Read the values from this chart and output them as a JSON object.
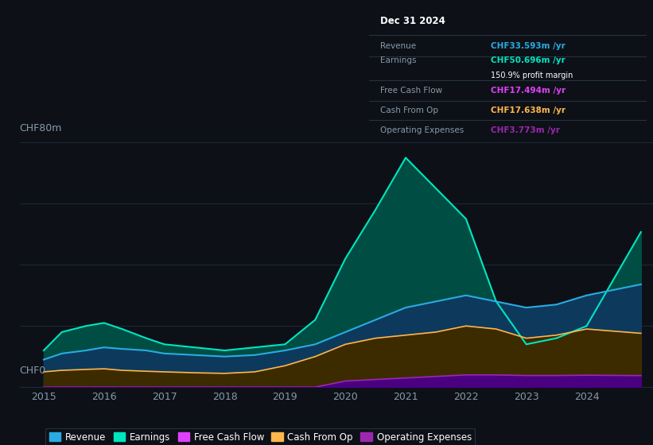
{
  "background_color": "#0d1117",
  "chart_bg": "#0d1117",
  "grid_color": "#1e2a38",
  "text_color": "#8899aa",
  "ylabel_text": "CHF80m",
  "ylabel0_text": "CHF0",
  "years": [
    2015,
    2015.3,
    2015.7,
    2016,
    2016.3,
    2016.7,
    2017,
    2017.5,
    2018,
    2018.5,
    2019,
    2019.5,
    2020,
    2020.5,
    2021,
    2021.5,
    2022,
    2022.5,
    2023,
    2023.5,
    2024,
    2024.9
  ],
  "revenue": [
    9,
    11,
    12,
    13,
    12.5,
    12,
    11,
    10.5,
    10,
    10.5,
    12,
    14,
    18,
    22,
    26,
    28,
    30,
    28,
    26,
    27,
    30,
    33.6
  ],
  "earnings": [
    12,
    18,
    20,
    21,
    19,
    16,
    14,
    13,
    12,
    13,
    14,
    22,
    42,
    58,
    75,
    65,
    55,
    28,
    14,
    16,
    20,
    50.7
  ],
  "cash_from_op": [
    5,
    5.5,
    5.8,
    6,
    5.5,
    5.2,
    5,
    4.7,
    4.5,
    5,
    7,
    10,
    14,
    16,
    17,
    18,
    20,
    19,
    16,
    17,
    19,
    17.6
  ],
  "operating_expenses": [
    0,
    0,
    0,
    0,
    0,
    0,
    0,
    0,
    0,
    0,
    0,
    0,
    2,
    2.5,
    3,
    3.5,
    4,
    4,
    3.8,
    3.8,
    3.9,
    3.77
  ],
  "revenue_color": "#29abe2",
  "earnings_color": "#00e5c0",
  "free_cash_flow_color": "#e040fb",
  "cash_from_op_color": "#ffb74d",
  "operating_expenses_color": "#9c27b0",
  "earnings_fill_color": "#004d44",
  "revenue_fill_color": "#0d3a5c",
  "cash_from_op_fill_color": "#3d2b00",
  "op_exp_fill_color": "#4a0080",
  "xticks": [
    2015,
    2016,
    2017,
    2018,
    2019,
    2020,
    2021,
    2022,
    2023,
    2024
  ],
  "ylim": [
    0,
    80
  ],
  "info_box": {
    "date": "Dec 31 2024",
    "revenue_label": "Revenue",
    "revenue_value": "CHF33.593m",
    "revenue_color": "#29abe2",
    "earnings_label": "Earnings",
    "earnings_value": "CHF50.696m",
    "earnings_color": "#00e5c0",
    "profit_margin": "150.9% profit margin",
    "fcf_label": "Free Cash Flow",
    "fcf_value": "CHF17.494m",
    "fcf_color": "#e040fb",
    "cashop_label": "Cash From Op",
    "cashop_value": "CHF17.638m",
    "cashop_color": "#ffb74d",
    "opex_label": "Operating Expenses",
    "opex_value": "CHF3.773m",
    "opex_color": "#9c27b0"
  }
}
